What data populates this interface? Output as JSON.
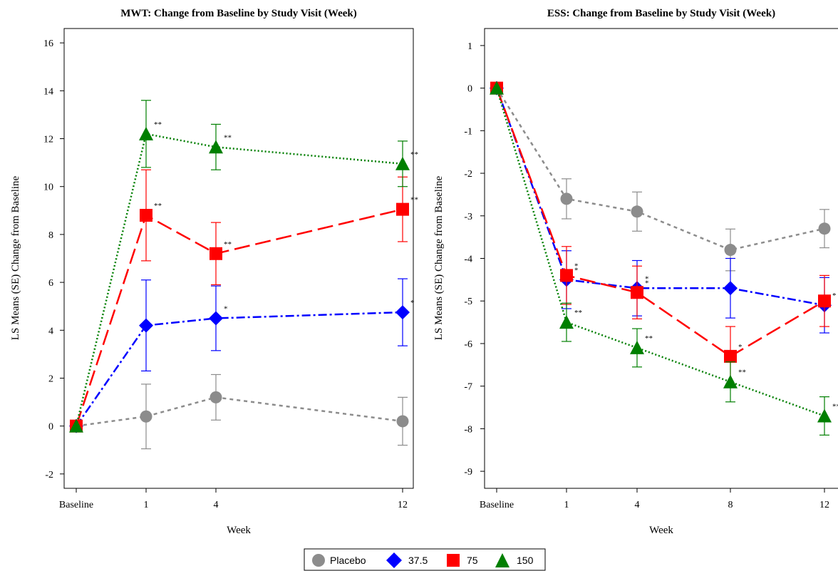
{
  "chart_data": [
    {
      "type": "line",
      "title": "MWT: Change from Baseline by Study Visit (Week)",
      "xlabel": "Week",
      "ylabel": "LS Means (SE) Change from Baseline",
      "categories": [
        "Baseline",
        "1",
        "4",
        "12"
      ],
      "x": [
        0,
        1,
        4,
        12
      ],
      "ylim": [
        -2.6,
        16.6
      ],
      "yticks": [
        -2,
        0,
        2,
        4,
        6,
        8,
        10,
        12,
        14,
        16
      ],
      "grid": false,
      "series": [
        {
          "name": "Placebo",
          "values": [
            0,
            0.4,
            1.2,
            0.2
          ],
          "se": [
            0,
            1.35,
            0.95,
            1.0
          ],
          "stars": [
            "",
            "",
            "",
            ""
          ]
        },
        {
          "name": "37.5",
          "values": [
            0,
            4.2,
            4.5,
            4.75
          ],
          "se": [
            0,
            1.9,
            1.35,
            1.4
          ],
          "stars": [
            "",
            "",
            "*",
            "*"
          ]
        },
        {
          "name": "75",
          "values": [
            0,
            8.8,
            7.2,
            9.05
          ],
          "se": [
            0,
            1.9,
            1.3,
            1.35
          ],
          "stars": [
            "",
            "**",
            "**",
            "**"
          ]
        },
        {
          "name": "150",
          "values": [
            0,
            12.2,
            11.65,
            10.95
          ],
          "se": [
            0,
            1.4,
            0.95,
            0.95
          ],
          "stars": [
            "",
            "**",
            "**",
            "**"
          ]
        }
      ]
    },
    {
      "type": "line",
      "title": "ESS: Change from Baseline by Study Visit (Week)",
      "xlabel": "Week",
      "ylabel": "LS Means (SE) Change from Baseline",
      "categories": [
        "Baseline",
        "1",
        "4",
        "8",
        "12"
      ],
      "x": [
        0,
        1,
        4,
        8,
        12
      ],
      "ylim": [
        -9.4,
        1.4
      ],
      "yticks": [
        1,
        0,
        -1,
        -2,
        -3,
        -4,
        -5,
        -6,
        -7,
        -8,
        -9
      ],
      "grid": false,
      "series": [
        {
          "name": "Placebo",
          "values": [
            0,
            -2.6,
            -2.9,
            -3.8,
            -3.3
          ],
          "se": [
            0,
            0.47,
            0.46,
            0.49,
            0.45
          ],
          "stars": [
            "",
            "",
            "",
            "",
            ""
          ]
        },
        {
          "name": "37.5",
          "values": [
            0,
            -4.5,
            -4.7,
            -4.7,
            -5.1
          ],
          "se": [
            0,
            0.68,
            0.65,
            0.7,
            0.65
          ],
          "stars": [
            "",
            "*",
            "*",
            "",
            "*"
          ]
        },
        {
          "name": "75",
          "values": [
            0,
            -4.4,
            -4.8,
            -6.3,
            -5.0
          ],
          "se": [
            0,
            0.68,
            0.62,
            0.7,
            0.6
          ],
          "stars": [
            "",
            "*",
            "*",
            "*",
            ""
          ]
        },
        {
          "name": "150",
          "values": [
            0,
            -5.5,
            -6.1,
            -6.9,
            -7.7
          ],
          "se": [
            0,
            0.45,
            0.45,
            0.47,
            0.45
          ],
          "stars": [
            "",
            "**",
            "**",
            "**",
            "**"
          ]
        }
      ]
    }
  ],
  "legend": {
    "items": [
      {
        "label": "Placebo",
        "marker": "circle",
        "color": "#8c8c8c"
      },
      {
        "label": "37.5",
        "marker": "diamond",
        "color": "#0000ff"
      },
      {
        "label": "75",
        "marker": "square",
        "color": "#ff0000"
      },
      {
        "label": "150",
        "marker": "triangle",
        "color": "#007f00"
      }
    ],
    "placement": "bottom-center"
  },
  "style": {
    "series": [
      {
        "color": "#8c8c8c",
        "marker": "circle",
        "dash": "short-dash"
      },
      {
        "color": "#0000ff",
        "marker": "diamond",
        "dash": "dash-dot"
      },
      {
        "color": "#ff0000",
        "marker": "square",
        "dash": "long-dash"
      },
      {
        "color": "#007f00",
        "marker": "triangle",
        "dash": "dot"
      }
    ]
  }
}
